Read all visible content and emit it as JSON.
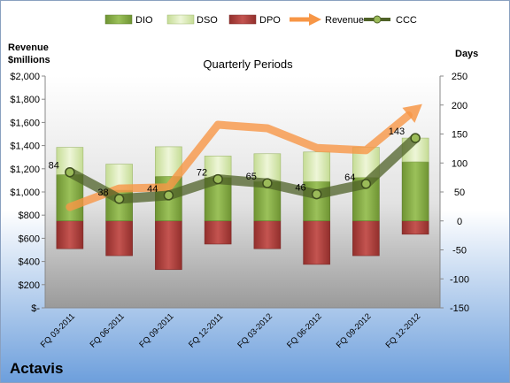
{
  "company": "Actavis",
  "chart_data": {
    "type": "bar",
    "title": "Quarterly Periods",
    "ylabel_left": "Revenue $millions",
    "ylabel_right": "Days",
    "categories": [
      "FQ 03-2011",
      "FQ 06-2011",
      "FQ 09-2011",
      "FQ 12-2011",
      "FQ 03-2012",
      "FQ 06-2012",
      "FQ 09-2012",
      "FQ 12-2012"
    ],
    "ylim_left": [
      0,
      2000
    ],
    "ylim_right": [
      -150,
      250
    ],
    "yticks_left": [
      "$-",
      "$200",
      "$400",
      "$600",
      "$800",
      "$1,000",
      "$1,200",
      "$1,400",
      "$1,600",
      "$1,800",
      "$2,000"
    ],
    "yticks_right": [
      "-150",
      "-100",
      "-50",
      "0",
      "50",
      "100",
      "150",
      "200",
      "250"
    ],
    "legend_position": "top",
    "grid": false,
    "series": [
      {
        "name": "DIO",
        "axis": "right",
        "kind": "stacked-bar",
        "color": "#8bb14a",
        "values": [
          80,
          53,
          77,
          75,
          68,
          68,
          75,
          102
        ]
      },
      {
        "name": "DSO",
        "axis": "right",
        "kind": "stacked-bar",
        "color": "#d8e8b0",
        "values": [
          47,
          45,
          51,
          37,
          48,
          51,
          52,
          41
        ]
      },
      {
        "name": "DPO",
        "axis": "right",
        "kind": "negative-bar",
        "color": "#c0504d",
        "values": [
          -48,
          -60,
          -84,
          -40,
          -48,
          -75,
          -60,
          -23
        ]
      },
      {
        "name": "Revenue",
        "axis": "left",
        "kind": "arrow-line",
        "color": "#f79646",
        "values": [
          870,
          1030,
          1040,
          1580,
          1550,
          1380,
          1360,
          1710
        ]
      },
      {
        "name": "CCC",
        "axis": "right",
        "kind": "line",
        "color": "#4f6228",
        "values": [
          84,
          38,
          44,
          72,
          65,
          46,
          64,
          143
        ]
      }
    ],
    "data_labels": [
      "84",
      "38",
      "44",
      "72",
      "65",
      "46",
      "64",
      "143"
    ]
  }
}
